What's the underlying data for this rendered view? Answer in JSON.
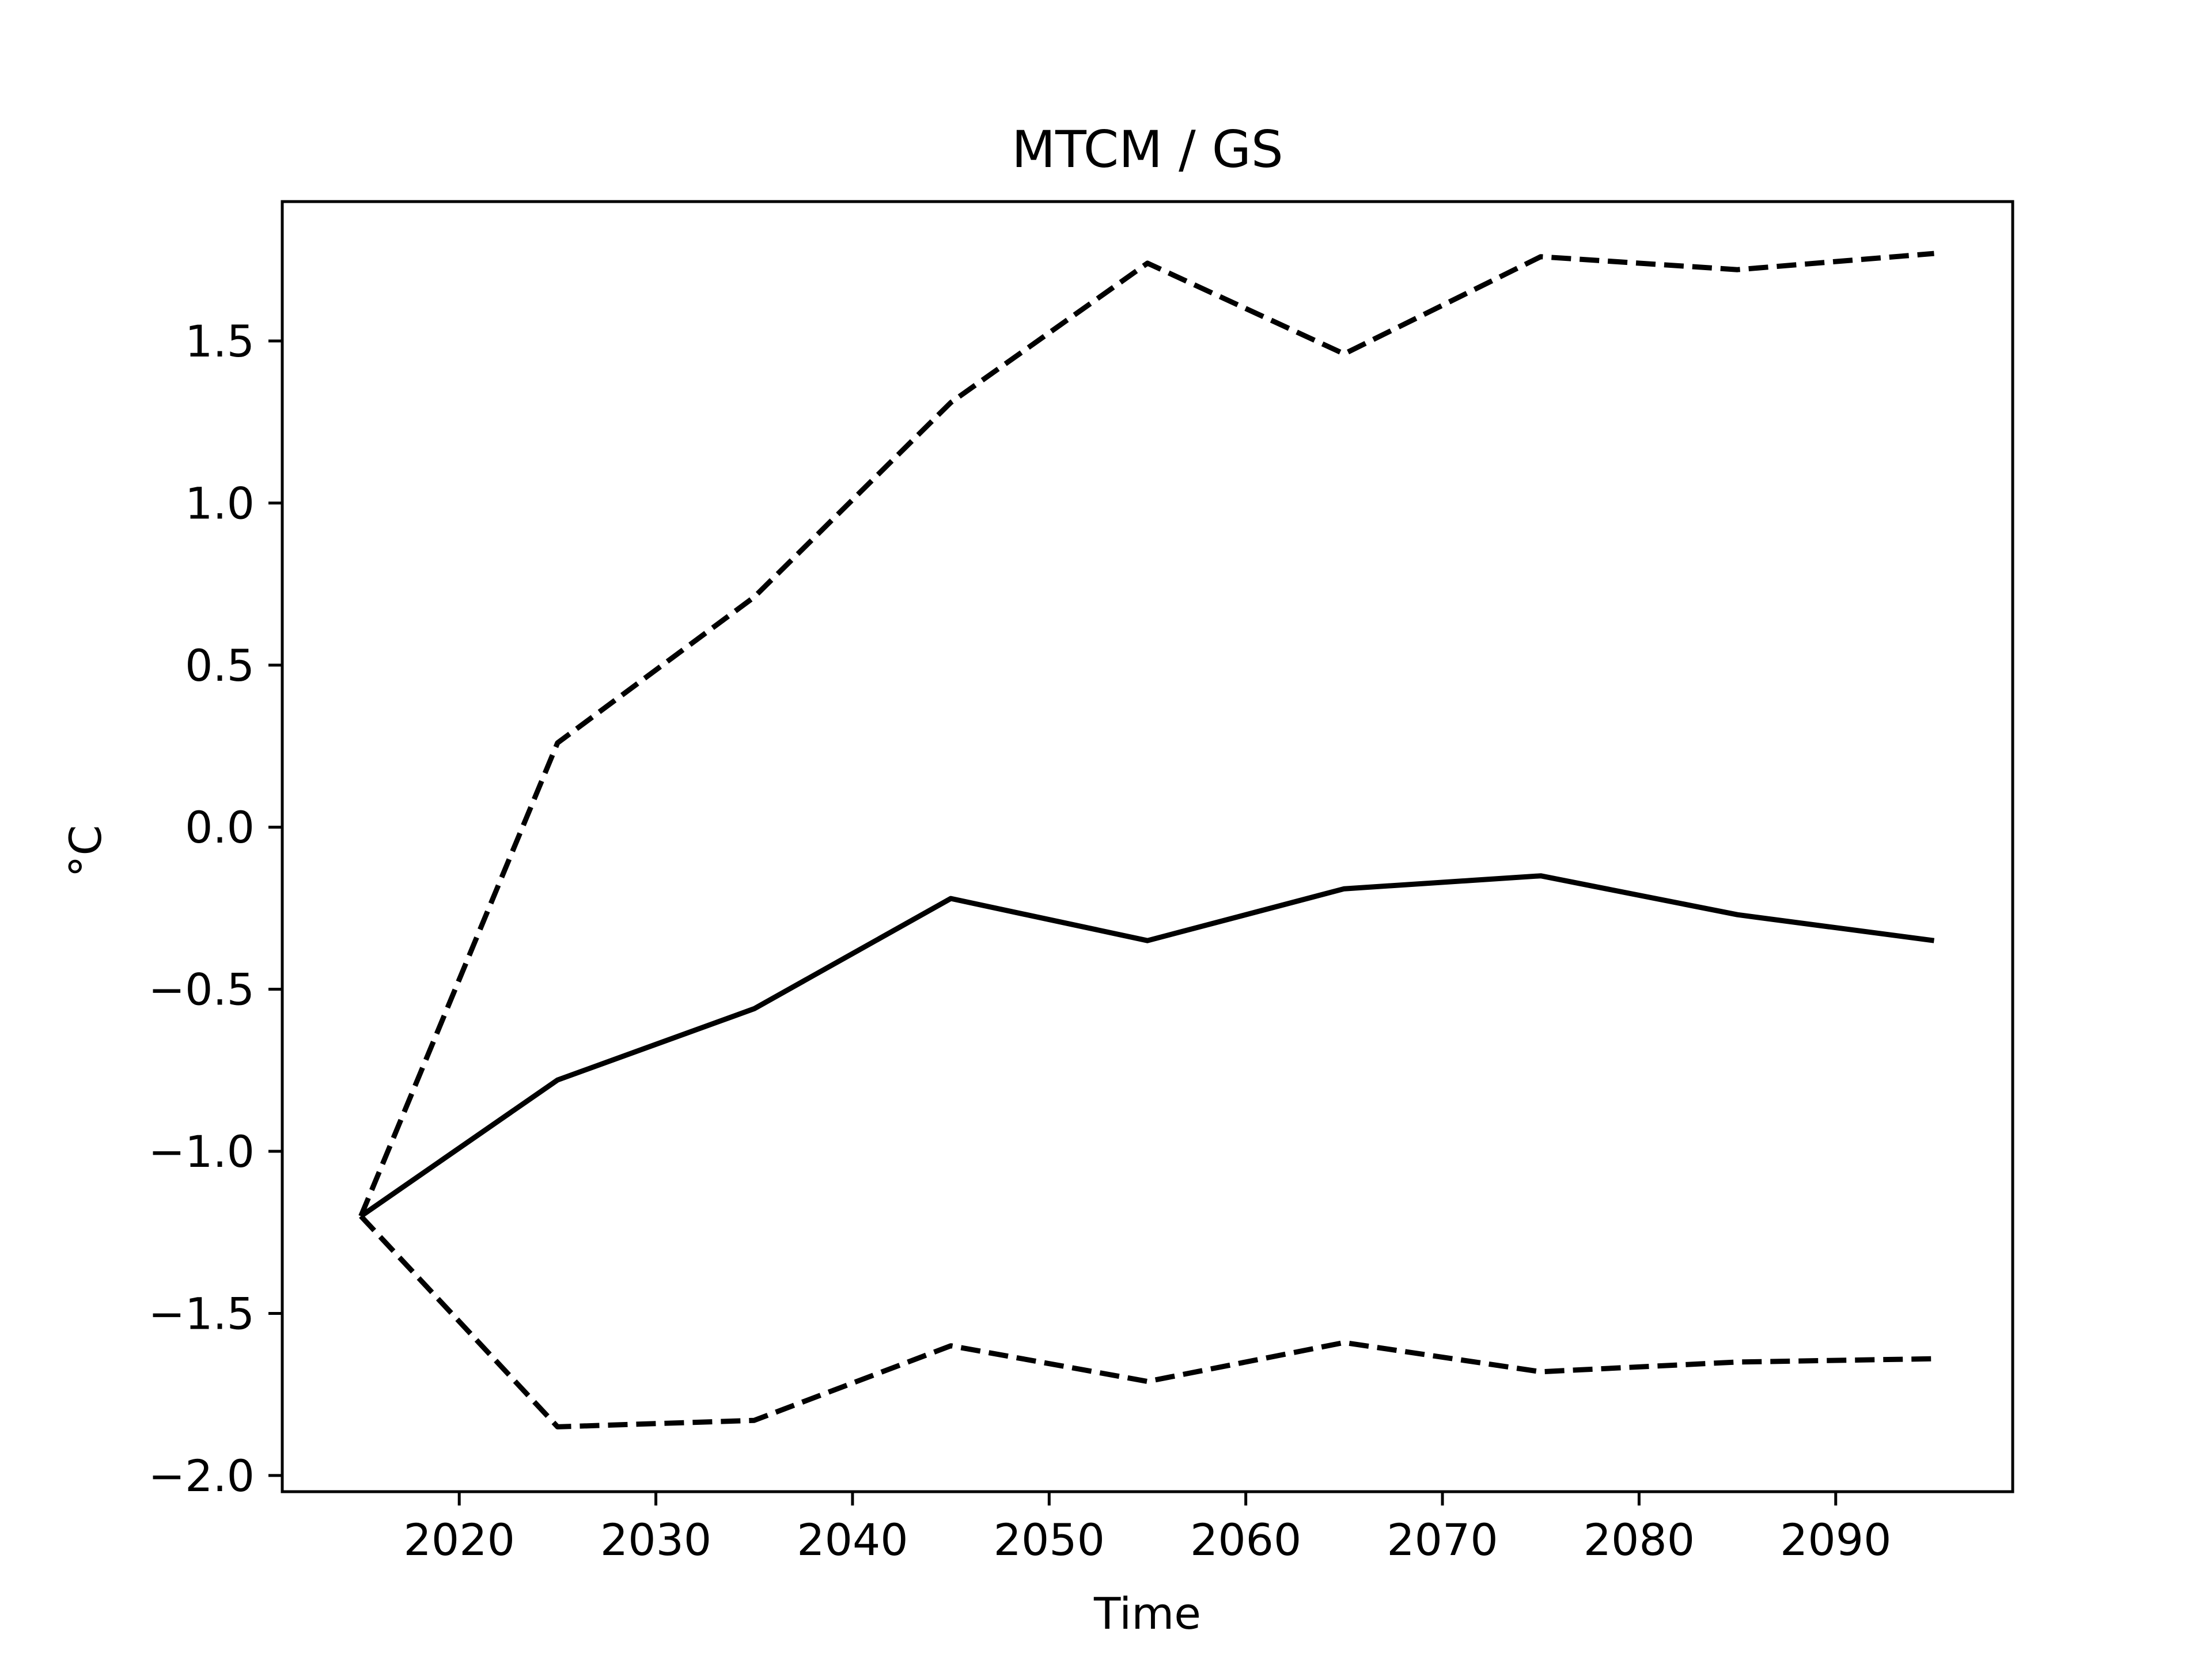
{
  "chart_data": {
    "type": "line",
    "title": "MTCM / GS",
    "xlabel": "Time",
    "ylabel": "°C",
    "xlim": [
      2011,
      2099
    ],
    "ylim": [
      -2.05,
      1.93
    ],
    "xticks": [
      2020,
      2030,
      2040,
      2050,
      2060,
      2070,
      2080,
      2090
    ],
    "xtick_labels": [
      "2020",
      "2030",
      "2040",
      "2050",
      "2060",
      "2070",
      "2080",
      "2090"
    ],
    "yticks": [
      -2.0,
      -1.5,
      -1.0,
      -0.5,
      0.0,
      0.5,
      1.0,
      1.5
    ],
    "ytick_labels": [
      "−2.0",
      "−1.5",
      "−1.0",
      "−0.5",
      "0.0",
      "0.5",
      "1.0",
      "1.5"
    ],
    "grid": false,
    "x": [
      2015,
      2025,
      2035,
      2045,
      2055,
      2065,
      2075,
      2085,
      2095
    ],
    "series": [
      {
        "values": [
          -1.2,
          -0.78,
          -0.56,
          -0.22,
          -0.35,
          -0.19,
          -0.15,
          -0.27,
          -0.35
        ],
        "style": "solid",
        "color": "#000000"
      },
      {
        "values": [
          -1.2,
          0.26,
          0.71,
          1.31,
          1.74,
          1.46,
          1.76,
          1.72,
          1.77
        ],
        "style": "dashed",
        "color": "#000000"
      },
      {
        "values": [
          -1.2,
          -1.85,
          -1.83,
          -1.6,
          -1.71,
          -1.59,
          -1.68,
          -1.65,
          -1.64
        ],
        "style": "dashed",
        "color": "#000000"
      }
    ]
  }
}
